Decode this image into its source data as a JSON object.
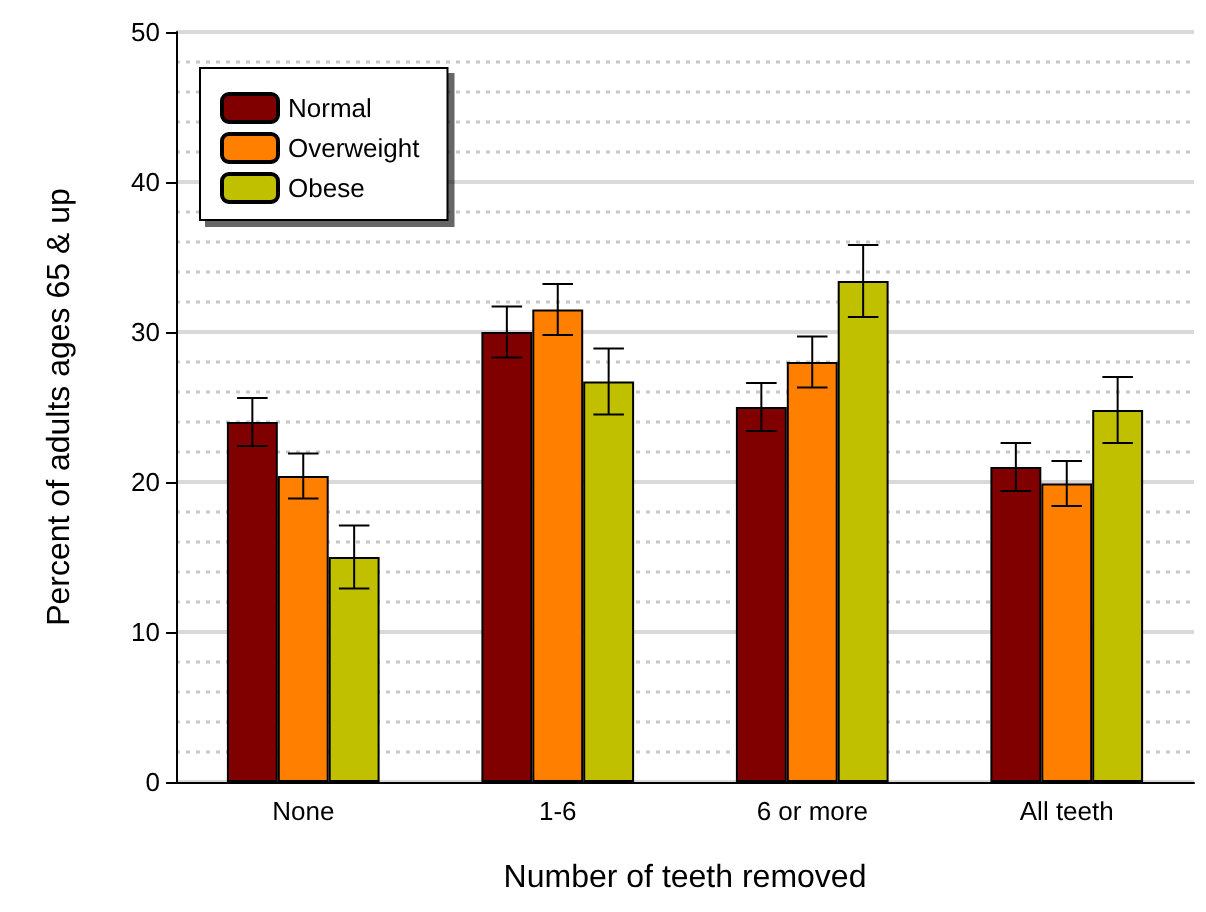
{
  "chart_data": {
    "type": "bar",
    "xlabel": "Number of teeth removed",
    "ylabel": "Percent of adults ages 65 & up",
    "categories": [
      "None",
      "1-6",
      "6 or more",
      "All teeth"
    ],
    "series": [
      {
        "name": "Normal",
        "color": "#800000",
        "values": [
          24,
          30,
          25,
          21
        ],
        "errors": [
          1.6,
          1.7,
          1.6,
          1.6
        ]
      },
      {
        "name": "Overweight",
        "color": "#ff8000",
        "values": [
          20.4,
          31.5,
          28,
          19.9
        ],
        "errors": [
          1.5,
          1.7,
          1.7,
          1.5
        ]
      },
      {
        "name": "Obese",
        "color": "#c0c000",
        "values": [
          15,
          26.7,
          33.4,
          24.8
        ],
        "errors": [
          2.1,
          2.2,
          2.4,
          2.2
        ]
      }
    ],
    "ylim": [
      0,
      50
    ],
    "yticks": [
      0,
      10,
      20,
      30,
      40,
      50
    ],
    "grid": "y",
    "legend": "top left"
  }
}
